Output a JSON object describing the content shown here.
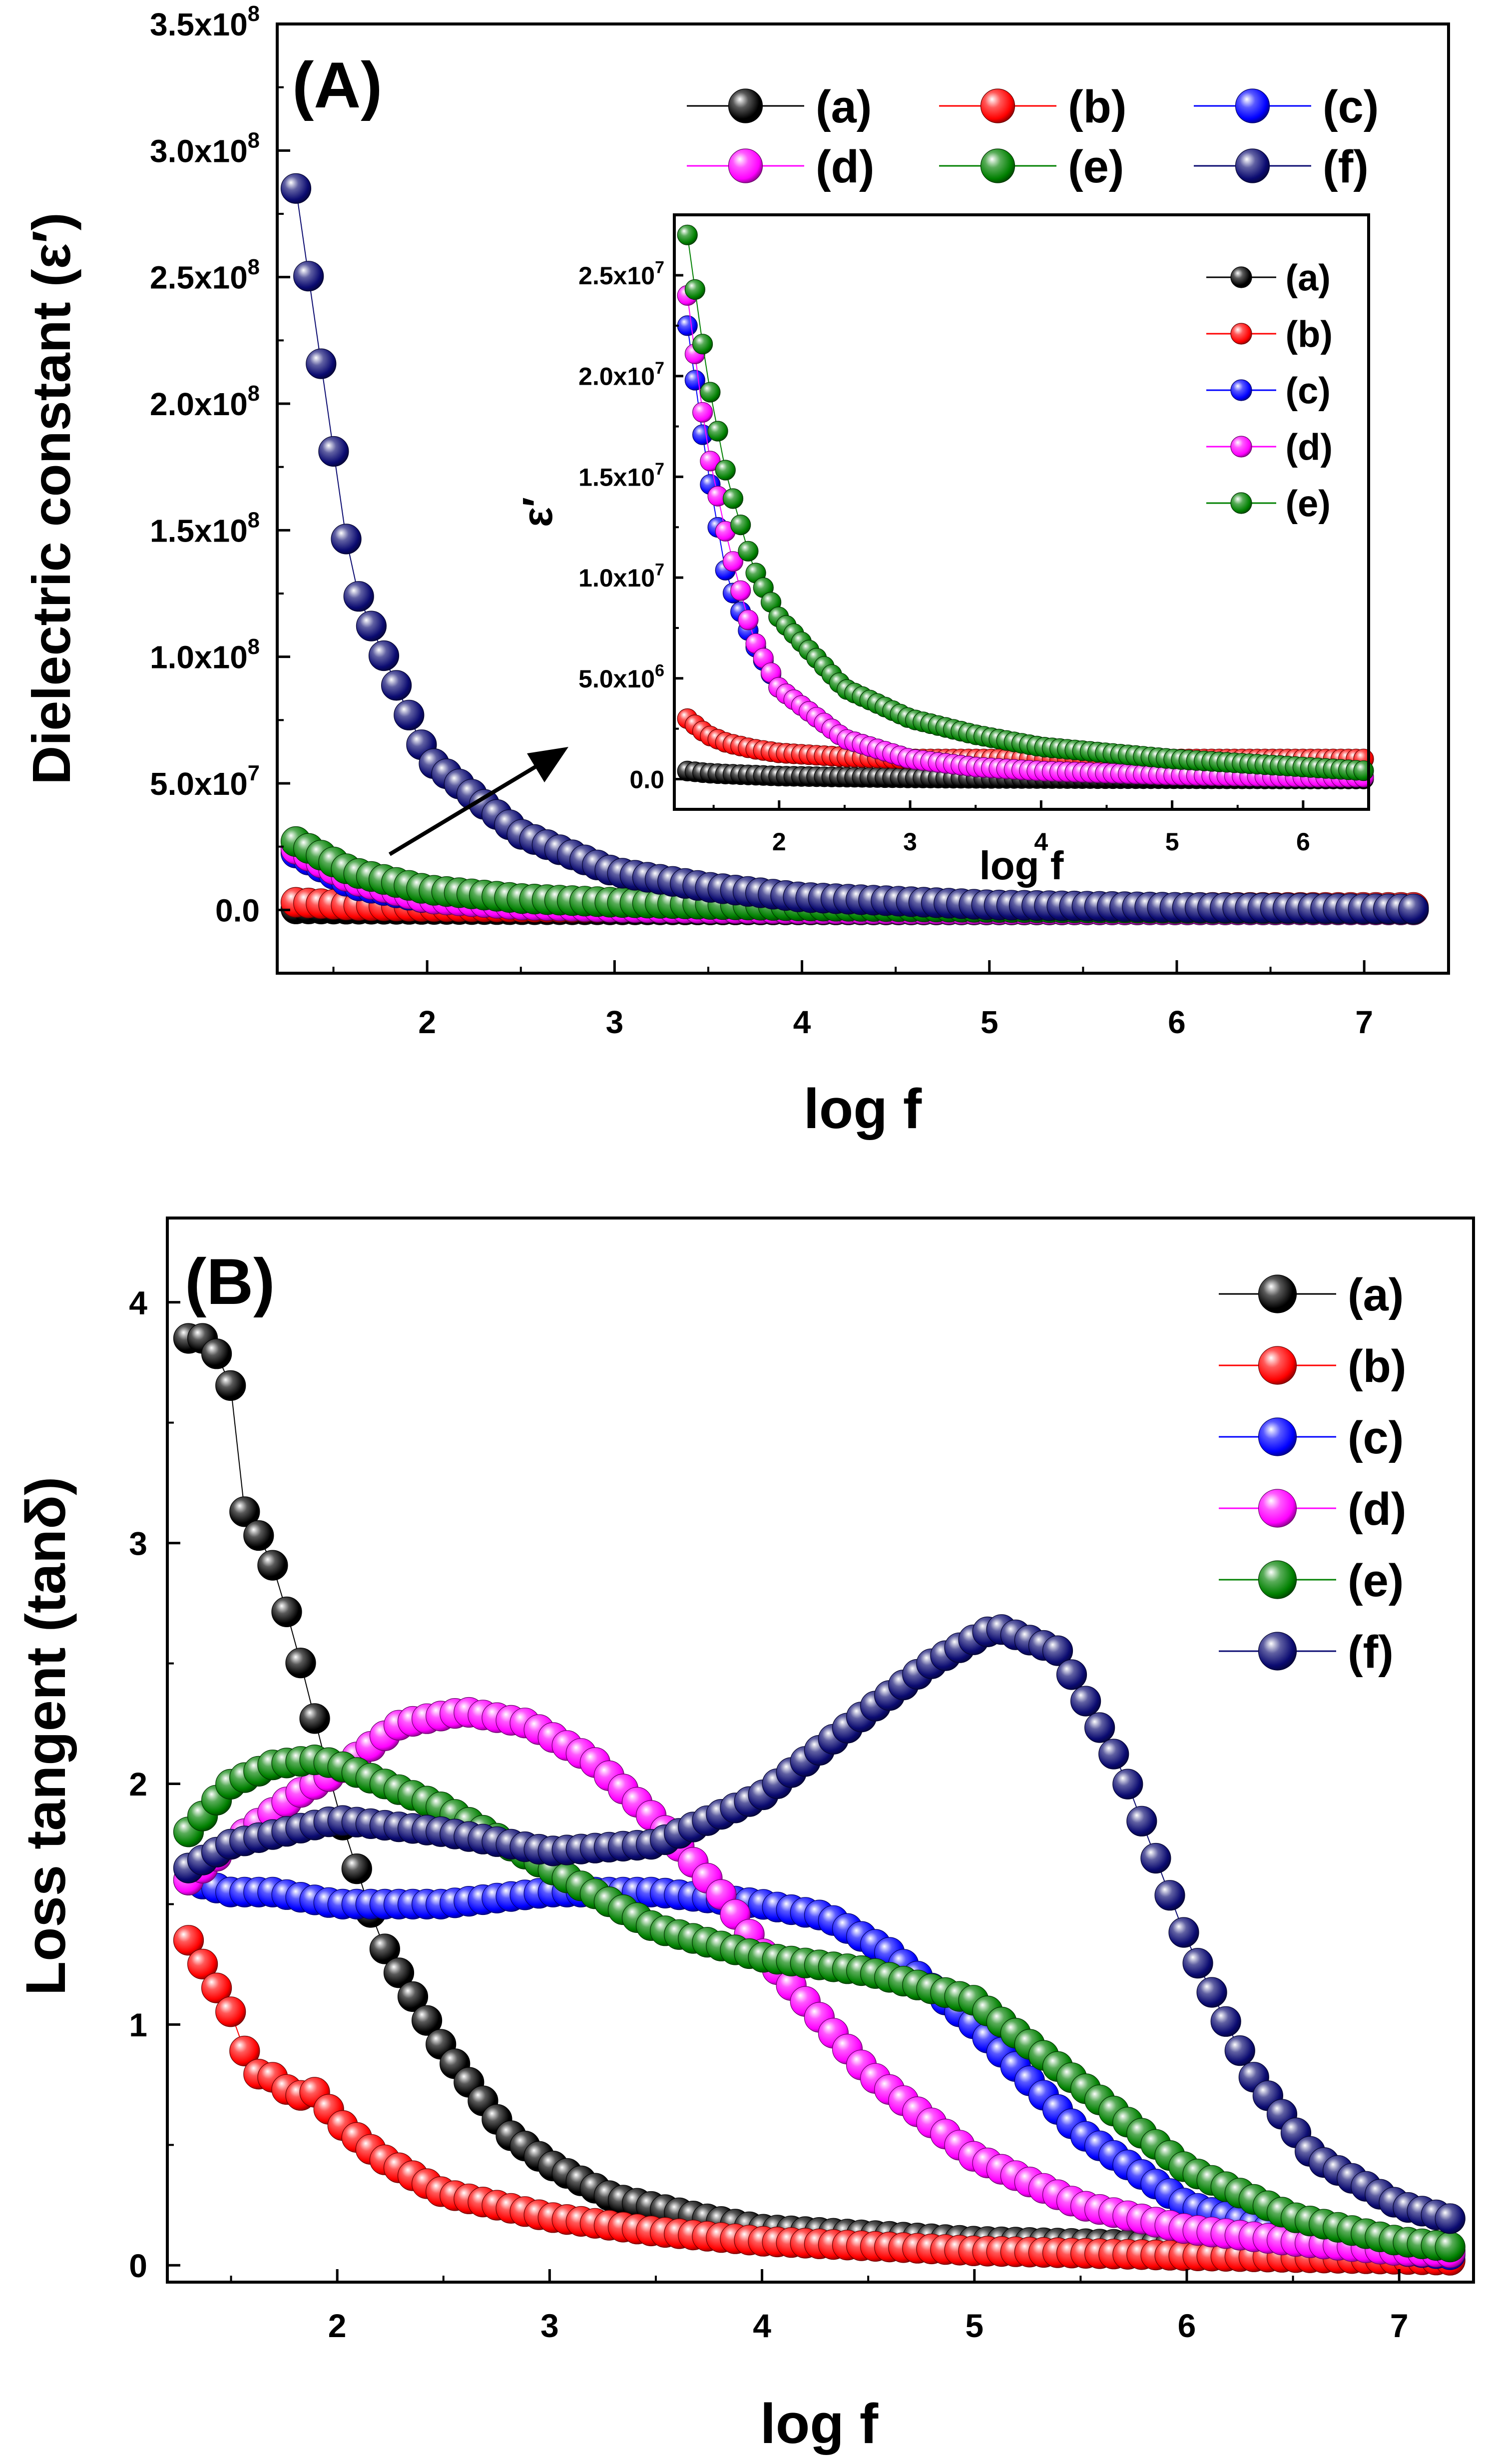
{
  "chart_data": [
    {
      "panel": "(A)",
      "type": "scatter",
      "xlabel": "log f",
      "ylabel": "Dielectric constant (ε′)",
      "xlim": [
        1.2,
        7.45
      ],
      "ylim": [
        -25000000.0,
        350000000.0
      ],
      "xticks": [
        2,
        3,
        4,
        5,
        6,
        7
      ],
      "xtick_labels": [
        "2",
        "3",
        "4",
        "5",
        "6",
        "7"
      ],
      "yticks": [
        0,
        50000000.0,
        100000000.0,
        150000000.0,
        200000000.0,
        250000000.0,
        300000000.0,
        350000000.0
      ],
      "ytick_labels": [
        {
          "base": "0.0",
          "exp": ""
        },
        {
          "base": "5.0x10",
          "exp": "7"
        },
        {
          "base": "1.0x10",
          "exp": "8"
        },
        {
          "base": "1.5x10",
          "exp": "8"
        },
        {
          "base": "2.0x10",
          "exp": "8"
        },
        {
          "base": "2.5x10",
          "exp": "8"
        },
        {
          "base": "3.0x10",
          "exp": "8"
        },
        {
          "base": "3.5x10",
          "exp": "8"
        }
      ],
      "legend": {
        "placement": "top-right",
        "columns": 3
      },
      "x": [
        1.3,
        1.6,
        2.0,
        2.5,
        3.0,
        3.5,
        4.0,
        5.0,
        6.0,
        7.0,
        7.3
      ],
      "series": [
        {
          "name": "(a)",
          "color": "#000000",
          "values": [
            400000.0,
            300000.0,
            200000.0,
            100000.0,
            50000.0,
            30000.0,
            20000.0,
            10000.0,
            10000.0,
            10000.0,
            10000.0
          ]
        },
        {
          "name": "(b)",
          "color": "#ff0000",
          "values": [
            3000000.0,
            1800000.0,
            1300000.0,
            1100000.0,
            1000000.0,
            1000000.0,
            1000000.0,
            1000000.0,
            1000000.0,
            1000000.0,
            1000000.0
          ]
        },
        {
          "name": "(c)",
          "color": "#0000ff",
          "values": [
            22500000.0,
            10000000.0,
            4500000.0,
            2000000.0,
            1000000.0,
            600000.0,
            400000.0,
            200000.0,
            100000.0,
            100000.0,
            100000.0
          ]
        },
        {
          "name": "(d)",
          "color": "#ff00ff",
          "values": [
            24000000.0,
            12000000.0,
            4500000.0,
            2000000.0,
            1000000.0,
            600000.0,
            400000.0,
            200000.0,
            100000.0,
            100000.0,
            100000.0
          ]
        },
        {
          "name": "(e)",
          "color": "#008000",
          "values": [
            27000000.0,
            15000000.0,
            8000000.0,
            4500000.0,
            3000000.0,
            2200000.0,
            1600000.0,
            1000000.0,
            600000.0,
            400000.0,
            300000.0
          ]
        },
        {
          "name": "(f)",
          "color": "#0a0a70",
          "values": [
            285000000.0,
            130000000.0,
            60000000.0,
            30000000.0,
            15000000.0,
            9000000.0,
            5000000.0,
            2000000.0,
            1000000.0,
            500000.0,
            400000.0
          ]
        }
      ],
      "inset": {
        "type": "scatter",
        "xlabel": "log f",
        "ylabel": "ε′",
        "xlim": [
          1.2,
          6.5
        ],
        "ylim": [
          -1500000.0,
          28000000.0
        ],
        "xticks": [
          2,
          3,
          4,
          5,
          6
        ],
        "xtick_labels": [
          "2",
          "3",
          "4",
          "5",
          "6"
        ],
        "yticks": [
          0,
          5000000.0,
          10000000.0,
          15000000.0,
          20000000.0,
          25000000.0
        ],
        "ytick_labels": [
          {
            "base": "0.0",
            "exp": ""
          },
          {
            "base": "5.0x10",
            "exp": "6"
          },
          {
            "base": "1.0x10",
            "exp": "7"
          },
          {
            "base": "1.5x10",
            "exp": "7"
          },
          {
            "base": "2.0x10",
            "exp": "7"
          },
          {
            "base": "2.5x10",
            "exp": "7"
          }
        ],
        "legend": {
          "placement": "top-right",
          "columns": 1
        },
        "x": [
          1.3,
          1.45,
          1.6,
          1.8,
          2.0,
          2.5,
          3.0,
          3.5,
          4.0,
          5.0,
          6.0,
          6.5
        ],
        "series": [
          {
            "name": "(a)",
            "color": "#000000",
            "values": [
              400000.0,
              300000.0,
              250000.0,
              200000.0,
              150000.0,
              100000.0,
              60000.0,
              40000.0,
              30000.0,
              20000.0,
              10000.0,
              10000.0
            ]
          },
          {
            "name": "(b)",
            "color": "#ff0000",
            "values": [
              3000000.0,
              2200000.0,
              1800000.0,
              1500000.0,
              1300000.0,
              1100000.0,
              1000000.0,
              1000000.0,
              1000000.0,
              1000000.0,
              1000000.0,
              1000000.0
            ]
          },
          {
            "name": "(c)",
            "color": "#0000ff",
            "values": [
              22500000.0,
              15500000.0,
              10000000.0,
              6800000.0,
              4500000.0,
              2000000.0,
              1000000.0,
              600000.0,
              400000.0,
              200000.0,
              100000.0,
              100000.0
            ]
          },
          {
            "name": "(d)",
            "color": "#ff00ff",
            "values": [
              24000000.0,
              16500000.0,
              12000000.0,
              7000000.0,
              4500000.0,
              2000000.0,
              1000000.0,
              600000.0,
              400000.0,
              200000.0,
              100000.0,
              100000.0
            ]
          },
          {
            "name": "(e)",
            "color": "#008000",
            "values": [
              27000000.0,
              20000000.0,
              15000000.0,
              10500000.0,
              8000000.0,
              4500000.0,
              3000000.0,
              2200000.0,
              1600000.0,
              1000000.0,
              600000.0,
              400000.0
            ]
          }
        ]
      }
    },
    {
      "panel": "(B)",
      "type": "scatter",
      "xlabel": "log f",
      "ylabel": "Loss tangent (tanδ)",
      "xlim": [
        1.2,
        7.35
      ],
      "ylim": [
        -0.07,
        4.35
      ],
      "xticks": [
        2,
        3,
        4,
        5,
        6,
        7
      ],
      "xtick_labels": [
        "2",
        "3",
        "4",
        "5",
        "6",
        "7"
      ],
      "yticks": [
        0,
        1,
        2,
        3,
        4
      ],
      "ytick_labels": [
        {
          "base": "0",
          "exp": ""
        },
        {
          "base": "1",
          "exp": ""
        },
        {
          "base": "2",
          "exp": ""
        },
        {
          "base": "3",
          "exp": ""
        },
        {
          "base": "4",
          "exp": ""
        }
      ],
      "legend": {
        "placement": "top-right",
        "columns": 1
      },
      "series": [
        {
          "name": "(a)",
          "color": "#000000",
          "x": [
            1.3,
            1.4,
            1.5,
            1.55,
            1.62,
            1.7,
            1.8,
            1.9,
            2.0,
            2.2,
            2.5,
            2.8,
            3.0,
            3.3,
            3.7,
            4.0,
            5.0,
            6.0,
            7.3
          ],
          "values": [
            3.85,
            3.85,
            3.65,
            3.15,
            3.05,
            2.9,
            2.6,
            2.25,
            1.9,
            1.35,
            0.9,
            0.55,
            0.42,
            0.28,
            0.2,
            0.15,
            0.1,
            0.08,
            0.06
          ]
        },
        {
          "name": "(b)",
          "color": "#ff0000",
          "x": [
            1.3,
            1.4,
            1.5,
            1.6,
            1.7,
            1.8,
            1.9,
            2.0,
            2.2,
            2.5,
            3.0,
            3.5,
            4.0,
            5.0,
            6.0,
            7.3
          ],
          "values": [
            1.35,
            1.2,
            1.05,
            0.8,
            0.78,
            0.7,
            0.72,
            0.6,
            0.45,
            0.3,
            0.2,
            0.14,
            0.1,
            0.06,
            0.04,
            0.02
          ]
        },
        {
          "name": "(c)",
          "color": "#0000ff",
          "x": [
            1.3,
            1.5,
            1.7,
            2.0,
            2.5,
            3.0,
            3.5,
            4.0,
            4.3,
            4.6,
            5.0,
            5.5,
            6.0,
            6.5,
            7.0,
            7.3
          ],
          "values": [
            1.6,
            1.55,
            1.55,
            1.5,
            1.5,
            1.55,
            1.55,
            1.5,
            1.45,
            1.3,
            1.0,
            0.55,
            0.25,
            0.12,
            0.06,
            0.04
          ]
        },
        {
          "name": "(d)",
          "color": "#ff00ff",
          "x": [
            1.3,
            1.5,
            1.8,
            2.0,
            2.3,
            2.6,
            2.9,
            3.2,
            3.5,
            3.8,
            4.0,
            4.5,
            5.0,
            5.5,
            6.0,
            6.5,
            7.0,
            7.3
          ],
          "values": [
            1.6,
            1.75,
            1.95,
            2.05,
            2.25,
            2.3,
            2.25,
            2.1,
            1.85,
            1.55,
            1.3,
            0.8,
            0.45,
            0.25,
            0.15,
            0.1,
            0.06,
            0.05
          ]
        },
        {
          "name": "(e)",
          "color": "#008000",
          "x": [
            1.3,
            1.5,
            1.7,
            1.9,
            2.0,
            2.5,
            3.0,
            3.5,
            4.0,
            4.5,
            5.0,
            5.5,
            6.0,
            6.5,
            7.0,
            7.3
          ],
          "values": [
            1.8,
            2.0,
            2.08,
            2.1,
            2.08,
            1.9,
            1.65,
            1.4,
            1.28,
            1.22,
            1.1,
            0.75,
            0.4,
            0.2,
            0.1,
            0.07
          ]
        },
        {
          "name": "(f)",
          "color": "#0a0a70",
          "x": [
            1.3,
            1.5,
            2.0,
            2.5,
            3.0,
            3.5,
            4.0,
            4.5,
            4.8,
            5.1,
            5.4,
            5.7,
            6.0,
            6.3,
            6.6,
            7.0,
            7.3
          ],
          "values": [
            1.65,
            1.75,
            1.85,
            1.8,
            1.72,
            1.75,
            1.95,
            2.3,
            2.5,
            2.65,
            2.55,
            2.05,
            1.35,
            0.8,
            0.45,
            0.25,
            0.18
          ]
        }
      ]
    }
  ]
}
